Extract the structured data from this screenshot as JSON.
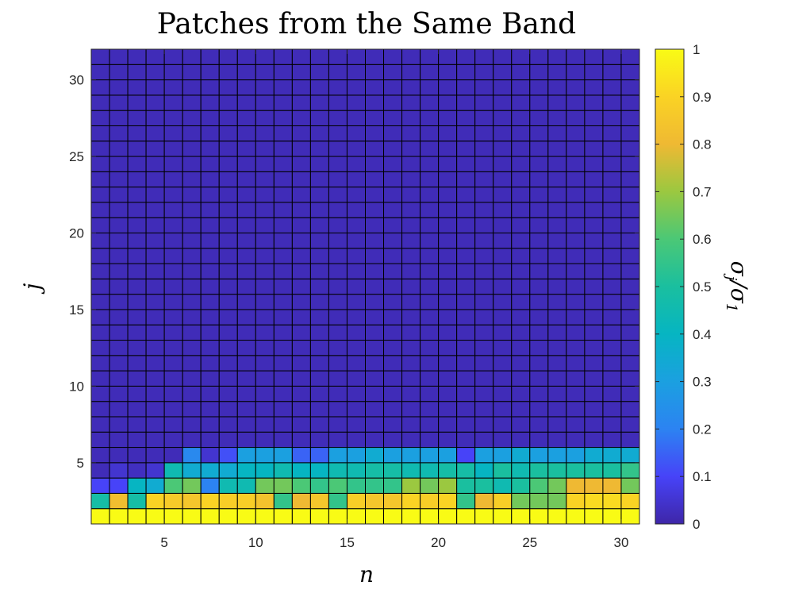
{
  "chart_data": {
    "type": "heatmap",
    "title": "Patches from the Same Band",
    "xlabel": "n",
    "ylabel": "j",
    "colorbar_label": {
      "sym": "σ",
      "sub1": "j",
      "sep": "/",
      "sub2": "1"
    },
    "xlim": [
      1,
      31
    ],
    "ylim": [
      1,
      32
    ],
    "xticks": [
      5,
      10,
      15,
      20,
      25,
      30
    ],
    "yticks": [
      5,
      10,
      15,
      20,
      25,
      30
    ],
    "colorbar_ticks": [
      0,
      0.1,
      0.2,
      0.3,
      0.4,
      0.5,
      0.6,
      0.7,
      0.8,
      0.9,
      1
    ],
    "colorbar_range": [
      0,
      1
    ],
    "colormap": "parula",
    "background_value": 0.02,
    "rows": [
      {
        "j": 1,
        "values": [
          1,
          1,
          1,
          1,
          1,
          1,
          1,
          1,
          1,
          1,
          1,
          1,
          1,
          1,
          1,
          1,
          1,
          1,
          1,
          1,
          1,
          1,
          1,
          1,
          1,
          1,
          1,
          1,
          1,
          1
        ]
      },
      {
        "j": 2,
        "values": [
          0.48,
          0.82,
          0.48,
          0.9,
          0.87,
          0.85,
          0.9,
          0.88,
          0.88,
          0.84,
          0.55,
          0.8,
          0.85,
          0.55,
          0.88,
          0.85,
          0.85,
          0.9,
          0.88,
          0.9,
          0.55,
          0.8,
          0.88,
          0.65,
          0.65,
          0.65,
          0.9,
          0.92,
          0.92,
          0.9
        ]
      },
      {
        "j": 3,
        "values": [
          0.1,
          0.1,
          0.4,
          0.35,
          0.6,
          0.65,
          0.2,
          0.45,
          0.45,
          0.65,
          0.65,
          0.6,
          0.55,
          0.6,
          0.55,
          0.55,
          0.55,
          0.7,
          0.65,
          0.7,
          0.5,
          0.5,
          0.45,
          0.5,
          0.6,
          0.65,
          0.8,
          0.8,
          0.8,
          0.65
        ]
      },
      {
        "j": 4,
        "values": [
          0.02,
          0.05,
          0.03,
          0.05,
          0.45,
          0.35,
          0.35,
          0.35,
          0.4,
          0.4,
          0.45,
          0.4,
          0.4,
          0.45,
          0.45,
          0.48,
          0.48,
          0.45,
          0.45,
          0.48,
          0.48,
          0.4,
          0.5,
          0.45,
          0.5,
          0.5,
          0.5,
          0.5,
          0.5,
          0.55
        ]
      },
      {
        "j": 5,
        "values": [
          0.02,
          0.02,
          0.02,
          0.02,
          0.02,
          0.22,
          0.05,
          0.12,
          0.3,
          0.3,
          0.3,
          0.15,
          0.15,
          0.3,
          0.3,
          0.35,
          0.3,
          0.3,
          0.3,
          0.3,
          0.1,
          0.3,
          0.3,
          0.35,
          0.3,
          0.3,
          0.3,
          0.35,
          0.35,
          0.35
        ]
      }
    ]
  }
}
